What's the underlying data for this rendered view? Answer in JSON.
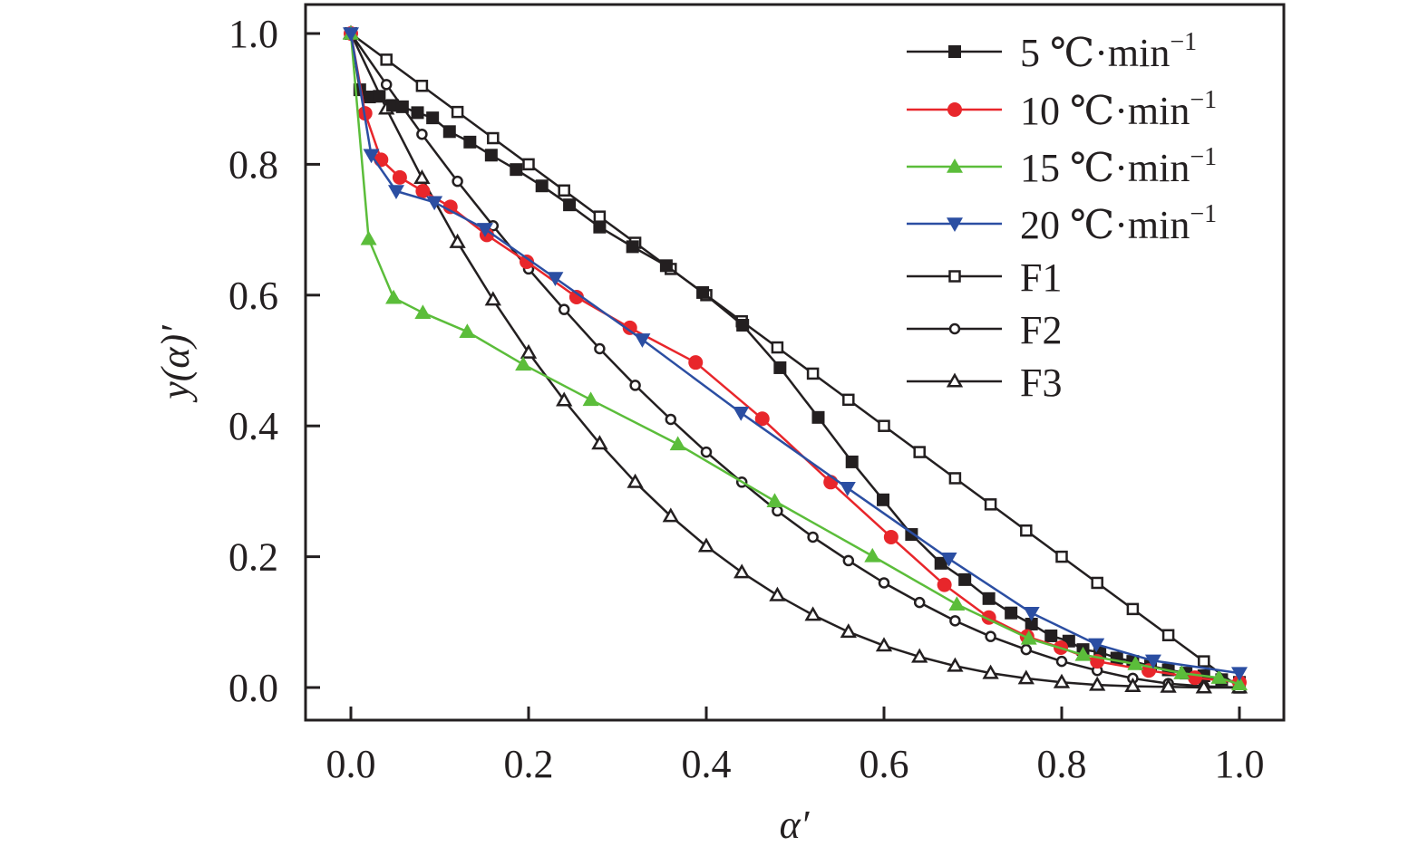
{
  "chart_data": {
    "type": "line",
    "title": "",
    "xlabel": "α′",
    "ylabel": "y(α)′",
    "xlim": [
      0.0,
      1.0
    ],
    "ylim": [
      0.0,
      1.0
    ],
    "xticks": [
      "0.0",
      "0.2",
      "0.4",
      "0.6",
      "0.8",
      "1.0"
    ],
    "yticks": [
      "0.0",
      "0.2",
      "0.4",
      "0.6",
      "0.8",
      "1.0"
    ],
    "grid": false,
    "legend_position": "top-right",
    "series": [
      {
        "name": "5 ℃·min⁻¹",
        "label_main": "5 ℃·min",
        "label_sup": "−1",
        "color": "#231f20",
        "marker": "square-filled",
        "x": [
          0.0,
          0.01,
          0.021,
          0.032,
          0.047,
          0.058,
          0.075,
          0.092,
          0.111,
          0.134,
          0.158,
          0.186,
          0.215,
          0.246,
          0.28,
          0.317,
          0.355,
          0.396,
          0.441,
          0.483,
          0.526,
          0.564,
          0.599,
          0.631,
          0.664,
          0.691,
          0.718,
          0.743,
          0.766,
          0.788,
          0.808,
          0.824,
          0.843,
          0.862,
          0.88,
          0.9,
          0.92,
          0.94,
          0.96,
          0.98,
          1.0
        ],
        "y": [
          1.0,
          0.914,
          0.903,
          0.904,
          0.89,
          0.888,
          0.879,
          0.871,
          0.85,
          0.834,
          0.814,
          0.792,
          0.767,
          0.738,
          0.704,
          0.674,
          0.645,
          0.604,
          0.554,
          0.489,
          0.413,
          0.345,
          0.287,
          0.234,
          0.19,
          0.165,
          0.136,
          0.114,
          0.097,
          0.079,
          0.071,
          0.058,
          0.054,
          0.045,
          0.04,
          0.033,
          0.027,
          0.022,
          0.018,
          0.012,
          0.008
        ]
      },
      {
        "name": "10 ℃·min⁻¹",
        "label_main": "10 ℃·min",
        "label_sup": "−1",
        "color": "#e8262b",
        "marker": "circle-filled",
        "x": [
          0.0,
          0.016,
          0.034,
          0.055,
          0.081,
          0.112,
          0.153,
          0.198,
          0.254,
          0.314,
          0.388,
          0.463,
          0.54,
          0.608,
          0.668,
          0.718,
          0.761,
          0.799,
          0.84,
          0.898,
          0.95,
          1.0
        ],
        "y": [
          1.0,
          0.878,
          0.807,
          0.78,
          0.759,
          0.735,
          0.692,
          0.651,
          0.597,
          0.55,
          0.497,
          0.411,
          0.314,
          0.23,
          0.157,
          0.107,
          0.078,
          0.061,
          0.04,
          0.026,
          0.015,
          0.008
        ]
      },
      {
        "name": "15 ℃·min⁻¹",
        "label_main": "15 ℃·min",
        "label_sup": "−1",
        "color": "#5bbd3a",
        "marker": "triangle-up-filled",
        "x": [
          0.0,
          0.02,
          0.048,
          0.081,
          0.131,
          0.194,
          0.27,
          0.368,
          0.477,
          0.587,
          0.682,
          0.763,
          0.824,
          0.883,
          0.935,
          0.977,
          1.0
        ],
        "y": [
          1.0,
          0.686,
          0.596,
          0.573,
          0.544,
          0.494,
          0.44,
          0.372,
          0.285,
          0.201,
          0.127,
          0.075,
          0.05,
          0.036,
          0.022,
          0.015,
          0.005
        ]
      },
      {
        "name": "20 ℃·min⁻¹",
        "label_main": "20 ℃·min",
        "label_sup": "−1",
        "color": "#2b4ea2",
        "marker": "triangle-down-filled",
        "x": [
          0.0,
          0.023,
          0.051,
          0.094,
          0.151,
          0.23,
          0.328,
          0.439,
          0.559,
          0.673,
          0.766,
          0.839,
          0.903,
          1.0
        ],
        "y": [
          1.0,
          0.814,
          0.759,
          0.742,
          0.701,
          0.626,
          0.532,
          0.42,
          0.305,
          0.197,
          0.114,
          0.066,
          0.041,
          0.022
        ]
      },
      {
        "name": "F1",
        "label_main": "F1",
        "label_sup": "",
        "color": "#231f20",
        "marker": "square-open",
        "x": [
          0.0,
          0.04,
          0.08,
          0.12,
          0.16,
          0.2,
          0.24,
          0.28,
          0.32,
          0.36,
          0.4,
          0.44,
          0.48,
          0.52,
          0.56,
          0.6,
          0.64,
          0.68,
          0.72,
          0.76,
          0.8,
          0.84,
          0.88,
          0.92,
          0.96,
          1.0
        ],
        "y": [
          1.0,
          0.96,
          0.92,
          0.88,
          0.84,
          0.8,
          0.76,
          0.72,
          0.68,
          0.64,
          0.6,
          0.56,
          0.52,
          0.48,
          0.44,
          0.4,
          0.36,
          0.32,
          0.28,
          0.24,
          0.2,
          0.16,
          0.12,
          0.08,
          0.04,
          0.0
        ]
      },
      {
        "name": "F2",
        "label_main": "F2",
        "label_sup": "",
        "color": "#231f20",
        "marker": "circle-open",
        "x": [
          0.0,
          0.04,
          0.08,
          0.12,
          0.16,
          0.2,
          0.24,
          0.28,
          0.32,
          0.36,
          0.4,
          0.44,
          0.48,
          0.52,
          0.56,
          0.6,
          0.64,
          0.68,
          0.72,
          0.76,
          0.8,
          0.84,
          0.88,
          0.92,
          0.96,
          1.0
        ],
        "y": [
          1.0,
          0.922,
          0.846,
          0.774,
          0.706,
          0.64,
          0.578,
          0.518,
          0.462,
          0.41,
          0.36,
          0.314,
          0.27,
          0.23,
          0.194,
          0.16,
          0.13,
          0.102,
          0.078,
          0.058,
          0.04,
          0.026,
          0.014,
          0.006,
          0.002,
          0.0
        ]
      },
      {
        "name": "F3",
        "label_main": "F3",
        "label_sup": "",
        "color": "#231f20",
        "marker": "triangle-up-open",
        "x": [
          0.0,
          0.04,
          0.08,
          0.12,
          0.16,
          0.2,
          0.24,
          0.28,
          0.32,
          0.36,
          0.4,
          0.44,
          0.48,
          0.52,
          0.56,
          0.6,
          0.64,
          0.68,
          0.72,
          0.76,
          0.8,
          0.84,
          0.88,
          0.92,
          0.96,
          1.0
        ],
        "y": [
          1.0,
          0.885,
          0.779,
          0.681,
          0.593,
          0.512,
          0.439,
          0.373,
          0.314,
          0.262,
          0.216,
          0.176,
          0.141,
          0.111,
          0.085,
          0.064,
          0.047,
          0.033,
          0.022,
          0.014,
          0.008,
          0.004,
          0.002,
          0.001,
          0.0,
          0.0
        ]
      }
    ]
  }
}
